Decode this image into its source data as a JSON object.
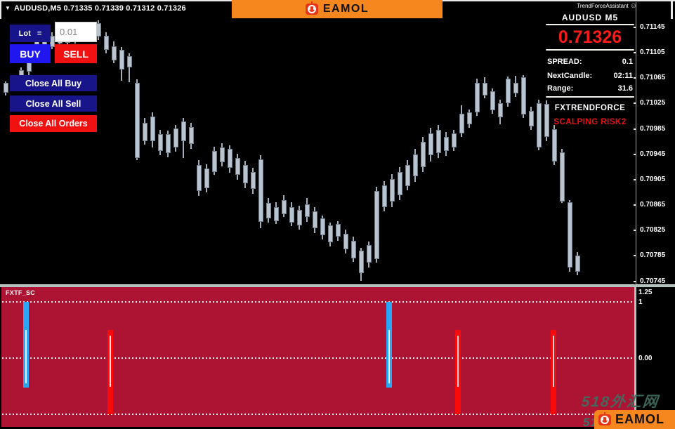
{
  "title_bar": {
    "dropdown_icon": "▼",
    "symbol_info": "AUDUSD,M5  0.71335 0.71339 0.71312 0.71326",
    "assistant_label": "TrendForceAssistant",
    "assistant_icon": "☺",
    "brand_name": "EAMOL"
  },
  "trade_panel": {
    "lot_label": "Lot   =",
    "lot_value": "0.01",
    "buy_label": "BUY",
    "sell_label": "SELL",
    "close_all_buy": "Close All Buy",
    "close_all_sell": "Close All Sell",
    "close_all_orders": "Close All Orders"
  },
  "info_panel": {
    "symbol": "AUDUSD  M5",
    "price": "0.71326",
    "rows": [
      {
        "label": "SPREAD:",
        "value": "0.1"
      },
      {
        "label": "NextCandle:",
        "value": "02:11"
      },
      {
        "label": "Range:",
        "value": "31.6"
      }
    ],
    "strategy_line1": "FXTRENDFORCE",
    "strategy_line2": "SCALPING RISK2"
  },
  "watermark": {
    "line1": "518外汇网",
    "line2": "518外汇网"
  },
  "footer_logo": {
    "brand_name": "EAMOL"
  },
  "colors": {
    "accent_orange": "#F6871F",
    "navy": "#18148A",
    "buy_blue": "#2016F0",
    "sell_red": "#F21111",
    "price_red": "#FF1A1A",
    "indicator_bg": "#AD1434",
    "bar_blue": "#29A6F5",
    "bar_red": "#FA0A0A",
    "candle": "#BAC4D0"
  },
  "chart_data": [
    {
      "type": "candlestick",
      "symbol": "AUDUSD",
      "timeframe": "M5",
      "ohlc_format": [
        "high",
        "body_top",
        "body_bottom",
        "low"
      ],
      "ylim": [
        0.7074,
        0.71157
      ],
      "y_ticks": [
        0.71145,
        0.71105,
        0.71065,
        0.71025,
        0.70985,
        0.70945,
        0.70905,
        0.70865,
        0.70825,
        0.70785,
        0.70745
      ],
      "grid": false,
      "candles": [
        [
          0.7106,
          0.71057,
          0.71042,
          0.71037
        ],
        [
          0.71068,
          0.71064,
          0.71048,
          0.71044
        ],
        [
          0.71082,
          0.71077,
          0.71057,
          0.71053
        ],
        [
          0.71101,
          0.71094,
          0.71075,
          0.7107
        ],
        [
          0.71126,
          0.71123,
          0.71101,
          0.71097
        ],
        [
          0.71132,
          0.71127,
          0.7111,
          0.71105
        ],
        [
          0.71137,
          0.71132,
          0.71114,
          0.7111
        ],
        [
          0.71141,
          0.71136,
          0.71119,
          0.71114
        ],
        [
          0.71143,
          0.71138,
          0.71121,
          0.71116
        ],
        [
          0.71145,
          0.71141,
          0.71123,
          0.71119
        ],
        [
          0.71149,
          0.71145,
          0.71127,
          0.71123
        ],
        [
          0.71154,
          0.71149,
          0.71132,
          0.71127
        ],
        [
          0.71156,
          0.71151,
          0.7113,
          0.71125
        ],
        [
          0.71137,
          0.71132,
          0.71109,
          0.71104
        ],
        [
          0.71123,
          0.71115,
          0.71093,
          0.71088
        ],
        [
          0.71114,
          0.7111,
          0.71079,
          0.71061
        ],
        [
          0.71104,
          0.71099,
          0.71082,
          0.71058
        ],
        [
          0.71063,
          0.71057,
          0.70939,
          0.70936
        ],
        [
          0.71002,
          0.70994,
          0.70966,
          0.7096
        ],
        [
          0.71011,
          0.71004,
          0.70966,
          0.70956
        ],
        [
          0.70983,
          0.70977,
          0.7095,
          0.70943
        ],
        [
          0.70982,
          0.70977,
          0.70947,
          0.7094
        ],
        [
          0.70991,
          0.70986,
          0.70956,
          0.70949
        ],
        [
          0.71002,
          0.70997,
          0.70966,
          0.70939
        ],
        [
          0.70994,
          0.70988,
          0.70961,
          0.70954
        ],
        [
          0.70936,
          0.70928,
          0.70887,
          0.70879
        ],
        [
          0.70929,
          0.70923,
          0.70892,
          0.70885
        ],
        [
          0.70957,
          0.7095,
          0.70917,
          0.70912
        ],
        [
          0.70962,
          0.70956,
          0.70932,
          0.70926
        ],
        [
          0.70959,
          0.70953,
          0.70923,
          0.70916
        ],
        [
          0.70946,
          0.70939,
          0.70912,
          0.70905
        ],
        [
          0.70935,
          0.70928,
          0.70899,
          0.70892
        ],
        [
          0.70924,
          0.70917,
          0.7089,
          0.70883
        ],
        [
          0.70944,
          0.70937,
          0.70838,
          0.70829
        ],
        [
          0.70876,
          0.70868,
          0.70844,
          0.70837
        ],
        [
          0.7087,
          0.70862,
          0.7084,
          0.70835
        ],
        [
          0.70881,
          0.70873,
          0.70851,
          0.70846
        ],
        [
          0.7087,
          0.70862,
          0.70837,
          0.70832
        ],
        [
          0.70864,
          0.70857,
          0.70833,
          0.70826
        ],
        [
          0.70876,
          0.70866,
          0.70846,
          0.70839
        ],
        [
          0.70862,
          0.70855,
          0.70828,
          0.70821
        ],
        [
          0.70848,
          0.70844,
          0.70817,
          0.70811
        ],
        [
          0.70837,
          0.70833,
          0.70806,
          0.708
        ],
        [
          0.7084,
          0.70835,
          0.70815,
          0.70808
        ],
        [
          0.70826,
          0.7082,
          0.70795,
          0.70789
        ],
        [
          0.70815,
          0.70809,
          0.70781,
          0.70775
        ],
        [
          0.70798,
          0.70793,
          0.70758,
          0.70746
        ],
        [
          0.70807,
          0.70802,
          0.70774,
          0.70767
        ],
        [
          0.70894,
          0.70887,
          0.7078,
          0.70774
        ],
        [
          0.70903,
          0.70896,
          0.70862,
          0.70855
        ],
        [
          0.70914,
          0.70906,
          0.7087,
          0.70862
        ],
        [
          0.70925,
          0.70917,
          0.70881,
          0.70873
        ],
        [
          0.70936,
          0.70928,
          0.70895,
          0.70888
        ],
        [
          0.70954,
          0.70945,
          0.7091,
          0.70901
        ],
        [
          0.70972,
          0.70965,
          0.70925,
          0.70917
        ],
        [
          0.70987,
          0.70978,
          0.70943,
          0.70934
        ],
        [
          0.70991,
          0.70983,
          0.70947,
          0.70939
        ],
        [
          0.7098,
          0.70972,
          0.7095,
          0.70943
        ],
        [
          0.70983,
          0.70978,
          0.70956,
          0.7095
        ],
        [
          0.71022,
          0.71009,
          0.70978,
          0.70972
        ],
        [
          0.71016,
          0.71011,
          0.70992,
          0.70987
        ],
        [
          0.71064,
          0.71057,
          0.71011,
          0.71005
        ],
        [
          0.71066,
          0.71058,
          0.71038,
          0.71033
        ],
        [
          0.71049,
          0.71044,
          0.71014,
          0.71009
        ],
        [
          0.71031,
          0.71025,
          0.71003,
          0.70992
        ],
        [
          0.71068,
          0.71064,
          0.71025,
          0.7102
        ],
        [
          0.71069,
          0.71058,
          0.71041,
          0.71035
        ],
        [
          0.7107,
          0.71066,
          0.71008,
          0.71002
        ],
        [
          0.7102,
          0.71013,
          0.70989,
          0.70983
        ],
        [
          0.71031,
          0.71025,
          0.70956,
          0.70951
        ],
        [
          0.7103,
          0.71024,
          0.70972,
          0.70966
        ],
        [
          0.70991,
          0.70985,
          0.70934,
          0.70928
        ],
        [
          0.70954,
          0.70948,
          0.70871,
          0.70868
        ],
        [
          0.70873,
          0.7087,
          0.70767,
          0.7076
        ],
        [
          0.70791,
          0.70785,
          0.7076,
          0.70754
        ]
      ]
    },
    {
      "type": "bar",
      "name": "FXTF_SC",
      "ylim": [
        -1.225,
        1.25
      ],
      "dotted_levels": [
        1,
        0,
        -1
      ],
      "y_tick_labels": [
        {
          "label": "1.25",
          "value": 1.25
        },
        {
          "label": "1",
          "value": 1
        },
        {
          "label": "0.00",
          "value": 0
        }
      ],
      "bars": [
        {
          "x_frac": 0.039,
          "color": "blue",
          "from": 1.0,
          "to": -0.53,
          "core": [
            0.5,
            -0.45
          ]
        },
        {
          "x_frac": 0.172,
          "color": "red",
          "from": 0.5,
          "to": -1.0,
          "core": [
            0.4,
            -0.51
          ]
        },
        {
          "x_frac": 0.613,
          "color": "blue",
          "from": 1.0,
          "to": -0.53,
          "core": [
            0.5,
            -0.45
          ]
        },
        {
          "x_frac": 0.721,
          "color": "red",
          "from": 0.5,
          "to": -1.0,
          "core": [
            0.4,
            -0.51
          ]
        },
        {
          "x_frac": 0.872,
          "color": "red",
          "from": 0.5,
          "to": -1.0,
          "core": [
            0.4,
            -0.51
          ]
        }
      ]
    }
  ]
}
